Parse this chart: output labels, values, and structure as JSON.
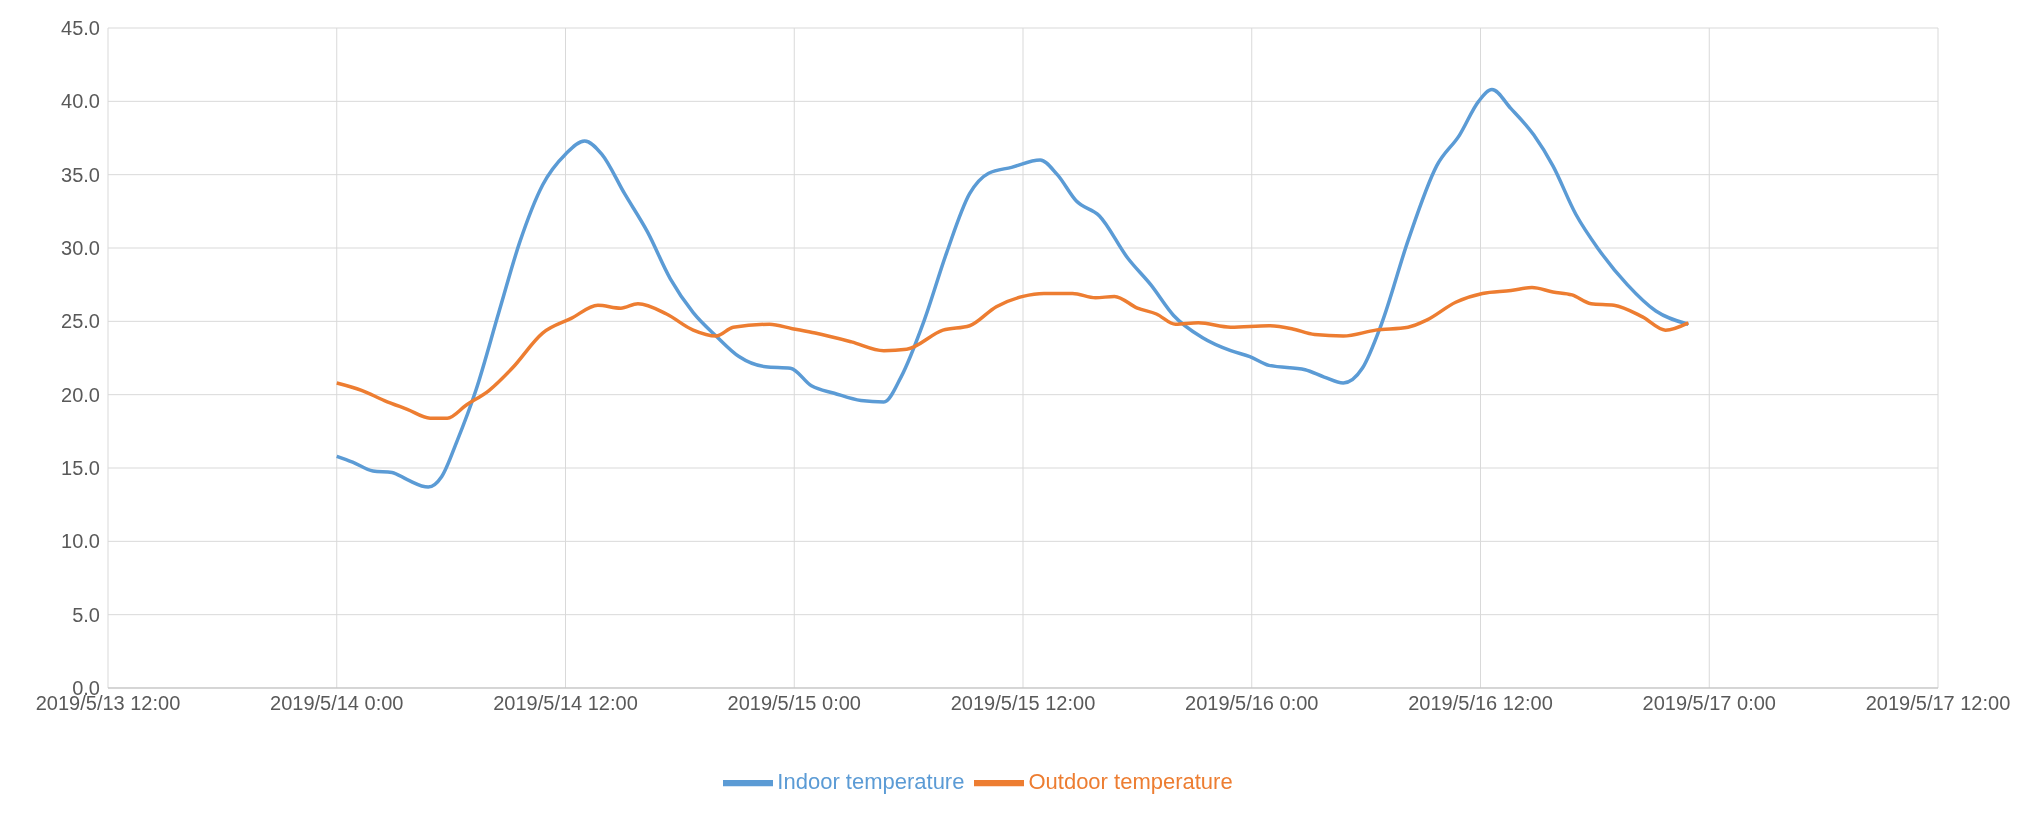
{
  "chart_data": {
    "type": "line",
    "xlim": [
      "2019-05-13T12:00",
      "2019-05-17T12:00"
    ],
    "xticks": [
      {
        "value": "2019-05-13T12:00",
        "label": "2019/5/13 12:00"
      },
      {
        "value": "2019-05-14T00:00",
        "label": "2019/5/14 0:00"
      },
      {
        "value": "2019-05-14T12:00",
        "label": "2019/5/14 12:00"
      },
      {
        "value": "2019-05-15T00:00",
        "label": "2019/5/15 0:00"
      },
      {
        "value": "2019-05-15T12:00",
        "label": "2019/5/15 12:00"
      },
      {
        "value": "2019-05-16T00:00",
        "label": "2019/5/16 0:00"
      },
      {
        "value": "2019-05-16T12:00",
        "label": "2019/5/16 12:00"
      },
      {
        "value": "2019-05-17T00:00",
        "label": "2019/5/17 0:00"
      },
      {
        "value": "2019-05-17T12:00",
        "label": "2019/5/17 12:00"
      }
    ],
    "ylim": [
      0,
      45
    ],
    "yticks": [
      {
        "value": 0,
        "label": "0.0"
      },
      {
        "value": 5,
        "label": "5.0"
      },
      {
        "value": 10,
        "label": "10.0"
      },
      {
        "value": 15,
        "label": "15.0"
      },
      {
        "value": 20,
        "label": "20.0"
      },
      {
        "value": 25,
        "label": "25.0"
      },
      {
        "value": 30,
        "label": "30.0"
      },
      {
        "value": 35,
        "label": "35.0"
      },
      {
        "value": 40,
        "label": "40.0"
      },
      {
        "value": 45,
        "label": "45.0"
      }
    ],
    "grid": true,
    "legend": "bottom",
    "marker": "none",
    "line_style": "solid",
    "series": [
      {
        "name": "Indoor temperature",
        "color": "#5b9bd5",
        "x": [
          "2019-05-14T00:00",
          "2019-05-14T00:50",
          "2019-05-14T01:54",
          "2019-05-14T02:54",
          "2019-05-14T03:42",
          "2019-05-14T04:48",
          "2019-05-14T05:30",
          "2019-05-14T06:18",
          "2019-05-14T07:18",
          "2019-05-14T08:30",
          "2019-05-14T09:36",
          "2019-05-14T10:48",
          "2019-05-14T12:00",
          "2019-05-14T13:00",
          "2019-05-14T13:54",
          "2019-05-14T15:06",
          "2019-05-14T16:18",
          "2019-05-14T17:30",
          "2019-05-14T18:42",
          "2019-05-14T19:54",
          "2019-05-14T21:06",
          "2019-05-14T22:30",
          "2019-05-14T23:48",
          "2019-05-15T00:54",
          "2019-05-15T02:06",
          "2019-05-15T03:30",
          "2019-05-15T04:42",
          "2019-05-15T05:36",
          "2019-05-15T06:48",
          "2019-05-15T08:00",
          "2019-05-15T09:12",
          "2019-05-15T10:12",
          "2019-05-15T11:24",
          "2019-05-15T12:54",
          "2019-05-15T13:48",
          "2019-05-15T14:48",
          "2019-05-15T16:00",
          "2019-05-15T17:30",
          "2019-05-15T18:42",
          "2019-05-15T19:54",
          "2019-05-15T21:24",
          "2019-05-15T22:54",
          "2019-05-15T23:54",
          "2019-05-16T00:54",
          "2019-05-16T02:48",
          "2019-05-16T03:48",
          "2019-05-16T04:48",
          "2019-05-16T05:48",
          "2019-05-16T06:48",
          "2019-05-16T08:12",
          "2019-05-16T09:42",
          "2019-05-16T10:54",
          "2019-05-16T11:54",
          "2019-05-16T12:36",
          "2019-05-16T13:36",
          "2019-05-16T14:48",
          "2019-05-16T15:48",
          "2019-05-16T17:00",
          "2019-05-16T18:12",
          "2019-05-16T19:42",
          "2019-05-16T21:12",
          "2019-05-16T22:54"
        ],
        "values": [
          15.8,
          15.4,
          14.8,
          14.7,
          14.2,
          13.7,
          14.4,
          16.8,
          20.3,
          25.6,
          30.4,
          34.3,
          36.4,
          37.3,
          36.4,
          33.7,
          31.1,
          27.9,
          25.6,
          24.0,
          22.6,
          21.9,
          21.8,
          20.6,
          20.1,
          19.6,
          19.5,
          21.2,
          25.0,
          29.7,
          33.7,
          35.1,
          35.5,
          36.0,
          35.0,
          33.2,
          32.2,
          29.3,
          27.5,
          25.4,
          23.9,
          23.0,
          22.6,
          22.0,
          21.7,
          21.2,
          20.8,
          21.8,
          24.8,
          30.5,
          35.6,
          37.7,
          40.0,
          40.8,
          39.5,
          37.7,
          35.6,
          32.3,
          29.9,
          27.5,
          25.7,
          24.8
        ]
      },
      {
        "name": "Outdoor temperature",
        "color": "#ed7d31",
        "x": [
          "2019-05-14T00:00",
          "2019-05-14T01:18",
          "2019-05-14T02:30",
          "2019-05-14T03:42",
          "2019-05-14T04:54",
          "2019-05-14T05:48",
          "2019-05-14T06:48",
          "2019-05-14T08:00",
          "2019-05-14T09:12",
          "2019-05-14T10:48",
          "2019-05-14T12:18",
          "2019-05-14T13:42",
          "2019-05-14T14:54",
          "2019-05-14T15:48",
          "2019-05-14T17:18",
          "2019-05-14T18:42",
          "2019-05-14T19:54",
          "2019-05-14T20:48",
          "2019-05-14T22:42",
          "2019-05-14T23:54",
          "2019-05-15T01:06",
          "2019-05-15T03:00",
          "2019-05-15T04:42",
          "2019-05-15T05:54",
          "2019-05-15T07:48",
          "2019-05-15T09:12",
          "2019-05-15T10:36",
          "2019-05-15T12:00",
          "2019-05-15T13:06",
          "2019-05-15T14:36",
          "2019-05-15T15:48",
          "2019-05-15T16:48",
          "2019-05-15T18:00",
          "2019-05-15T19:00",
          "2019-05-15T20:00",
          "2019-05-15T21:12",
          "2019-05-15T22:54",
          "2019-05-16T00:54",
          "2019-05-16T02:06",
          "2019-05-16T03:18",
          "2019-05-16T04:48",
          "2019-05-16T06:30",
          "2019-05-16T08:12",
          "2019-05-16T09:12",
          "2019-05-16T10:42",
          "2019-05-16T12:06",
          "2019-05-16T13:36",
          "2019-05-16T14:42",
          "2019-05-16T15:48",
          "2019-05-16T16:48",
          "2019-05-16T17:48",
          "2019-05-16T19:00",
          "2019-05-16T20:30",
          "2019-05-16T21:42",
          "2019-05-16T22:54"
        ],
        "values": [
          20.8,
          20.3,
          19.6,
          19.0,
          18.4,
          18.4,
          19.3,
          20.3,
          21.8,
          24.2,
          25.2,
          26.1,
          25.9,
          26.2,
          25.5,
          24.4,
          24.0,
          24.6,
          24.8,
          24.5,
          24.2,
          23.6,
          23.0,
          23.1,
          24.4,
          24.7,
          26.0,
          26.7,
          26.9,
          26.9,
          26.6,
          26.7,
          25.9,
          25.5,
          24.8,
          24.9,
          24.6,
          24.7,
          24.5,
          24.1,
          24.0,
          24.4,
          24.6,
          25.1,
          26.3,
          26.9,
          27.1,
          27.3,
          27.0,
          26.8,
          26.2,
          26.1,
          25.3,
          24.4,
          24.9
        ]
      }
    ]
  }
}
